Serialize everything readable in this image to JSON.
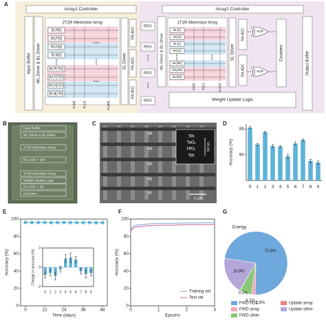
{
  "panel_labels": [
    "A",
    "B",
    "C",
    "D",
    "E",
    "F",
    "G"
  ],
  "diagram_a": {
    "array1_controller": "Array1 Controller",
    "array2_controller": "Array2 Controller",
    "input_buffer": "Input Buffer",
    "driver_left": "WL Driver & BL Driver",
    "array_left_title": "2T2R Memristor Array",
    "rows_left": [
      "BLP[0]",
      "WLP[0]",
      "WLN[0]",
      "BLN[0]",
      "BLP[783]",
      "WLP[783]",
      "WLN[783]",
      "BLN[783]"
    ],
    "cols_left": [
      "SL[0]",
      "SL[1]",
      "SL[99]"
    ],
    "sl_driver_left": "SL Driver",
    "adc_left": [
      "RA-ADC",
      "RA-ADC",
      "RA-ADC"
    ],
    "reg": [
      "REG",
      "REG",
      "REG",
      "REG"
    ],
    "driver_right": "WL Driver & BL Driver",
    "array_right_title": "1T1R Memristor Array",
    "rows_right": [
      "BL[0]",
      "WL[0]",
      "BL[1]",
      "WL[1]",
      "BL[98]",
      "WL[99]",
      "BL[99]"
    ],
    "cols_right": [
      "SL[0]",
      "SL[1]",
      "SL[18]"
    ],
    "sl_driver_right": "SL Driver",
    "adc_right": [
      "RA-ADC",
      "RA-ADC"
    ],
    "xor": [
      "XOR",
      "XOR"
    ],
    "counters": "Counters",
    "output_buffer": "Output Buffer",
    "weight_update": "Weight Update Logic"
  },
  "chip_b": {
    "labels": [
      "Input Buffer",
      "WL Driver & BL Driver",
      "2T2R Memristor Array",
      "RA-ADC × 100",
      "1T1R Memristor Array",
      "Weight Update Logic",
      "RA-ADC × 20",
      "Counters"
    ]
  },
  "tem_c": {
    "metal_layers": [
      "M5",
      "M4",
      "M3",
      "M2",
      "M1"
    ],
    "stack": [
      "TiN",
      "TaOₓ",
      "HfO₂",
      "TiN"
    ],
    "scale_small": "50 nm",
    "scale_large": "1 μm"
  },
  "chart_data": [
    {
      "type": "bar",
      "ylabel": "Accuracy (%)",
      "categories": [
        "0",
        "1",
        "2",
        "3",
        "4",
        "5",
        "6",
        "7",
        "8",
        "9"
      ],
      "values": [
        95.3,
        92.0,
        94.4,
        91.7,
        91.6,
        89.7,
        92.2,
        92.9,
        88.8,
        88.5
      ],
      "errors": [
        0.2,
        0.2,
        0.2,
        0.3,
        0.2,
        0.4,
        0.3,
        0.2,
        0.3,
        0.3
      ],
      "color": "#5fb3d9",
      "ylim": [
        85,
        96
      ],
      "yticks": [
        90,
        95
      ]
    },
    {
      "type": "line",
      "xlabel": "Time (days)",
      "ylabel": "Accuracy (%)",
      "x": [
        0,
        4,
        8,
        12,
        16,
        20,
        24,
        28,
        32,
        36,
        40,
        44,
        48
      ],
      "values": [
        96.2,
        96.0,
        96.1,
        96.0,
        95.9,
        96.0,
        96.1,
        95.9,
        96.0,
        95.9,
        96.0,
        95.8,
        95.9
      ],
      "color": "#5fb3d9",
      "markers": true,
      "xlim": [
        -3,
        51
      ],
      "xticks": [
        0,
        12,
        24,
        36,
        48
      ],
      "ylim": [
        0,
        100
      ],
      "yticks": [
        0,
        20,
        40,
        60,
        80,
        100
      ]
    },
    {
      "type": "bar",
      "ylabel": "Change in accuracy (%)",
      "categories": [
        "0",
        "1",
        "2",
        "3",
        "4",
        "5",
        "6",
        "7",
        "8",
        "9"
      ],
      "values": [
        -0.8,
        -0.6,
        -0.9,
        -0.2,
        0.9,
        1.0,
        0.8,
        -0.4,
        -0.7,
        -0.6
      ],
      "errors": [
        0.3,
        0.3,
        0.4,
        0.3,
        0.4,
        0.5,
        0.3,
        0.3,
        0.4,
        0.3
      ],
      "color": "#5fb3d9",
      "ylim": [
        -2,
        2
      ],
      "yticks": [
        -2,
        0,
        2
      ]
    },
    {
      "type": "line",
      "xlabel": "Epochs",
      "ylabel": "Accuracy (%)",
      "x": [
        0,
        0.1,
        0.2,
        0.5,
        1,
        1.5,
        2,
        2.5,
        3
      ],
      "series": [
        {
          "name": "Training set",
          "color": "#7b9fd4",
          "values": [
            88,
            92,
            93,
            94,
            95,
            95,
            95.5,
            95.5,
            96
          ]
        },
        {
          "name": "Test set",
          "color": "#c0609a",
          "values": [
            86,
            90,
            91,
            92,
            93,
            93,
            93.5,
            93.5,
            93.8
          ]
        }
      ],
      "xlim": [
        0,
        3
      ],
      "xticks": [
        0,
        1,
        2,
        3
      ],
      "ylim": [
        0,
        100
      ],
      "yticks": [
        0,
        20,
        40,
        60,
        80,
        100
      ],
      "legend": "lower right"
    },
    {
      "type": "pie",
      "title": "Energy",
      "categories": [
        "FWD ADC",
        "FWD array",
        "FWD other",
        "Update array",
        "Update other"
      ],
      "values": [
        72.8,
        1.9,
        6.2,
        0.2,
        18.9
      ],
      "value_labels": [
        "72.8%",
        "1.9%",
        "6.2%",
        "0.2%",
        "18.9%"
      ],
      "colors": [
        "#6fa8dc",
        "#f4a6b8",
        "#8bc77a",
        "#f08080",
        "#b3a6d9"
      ]
    }
  ]
}
